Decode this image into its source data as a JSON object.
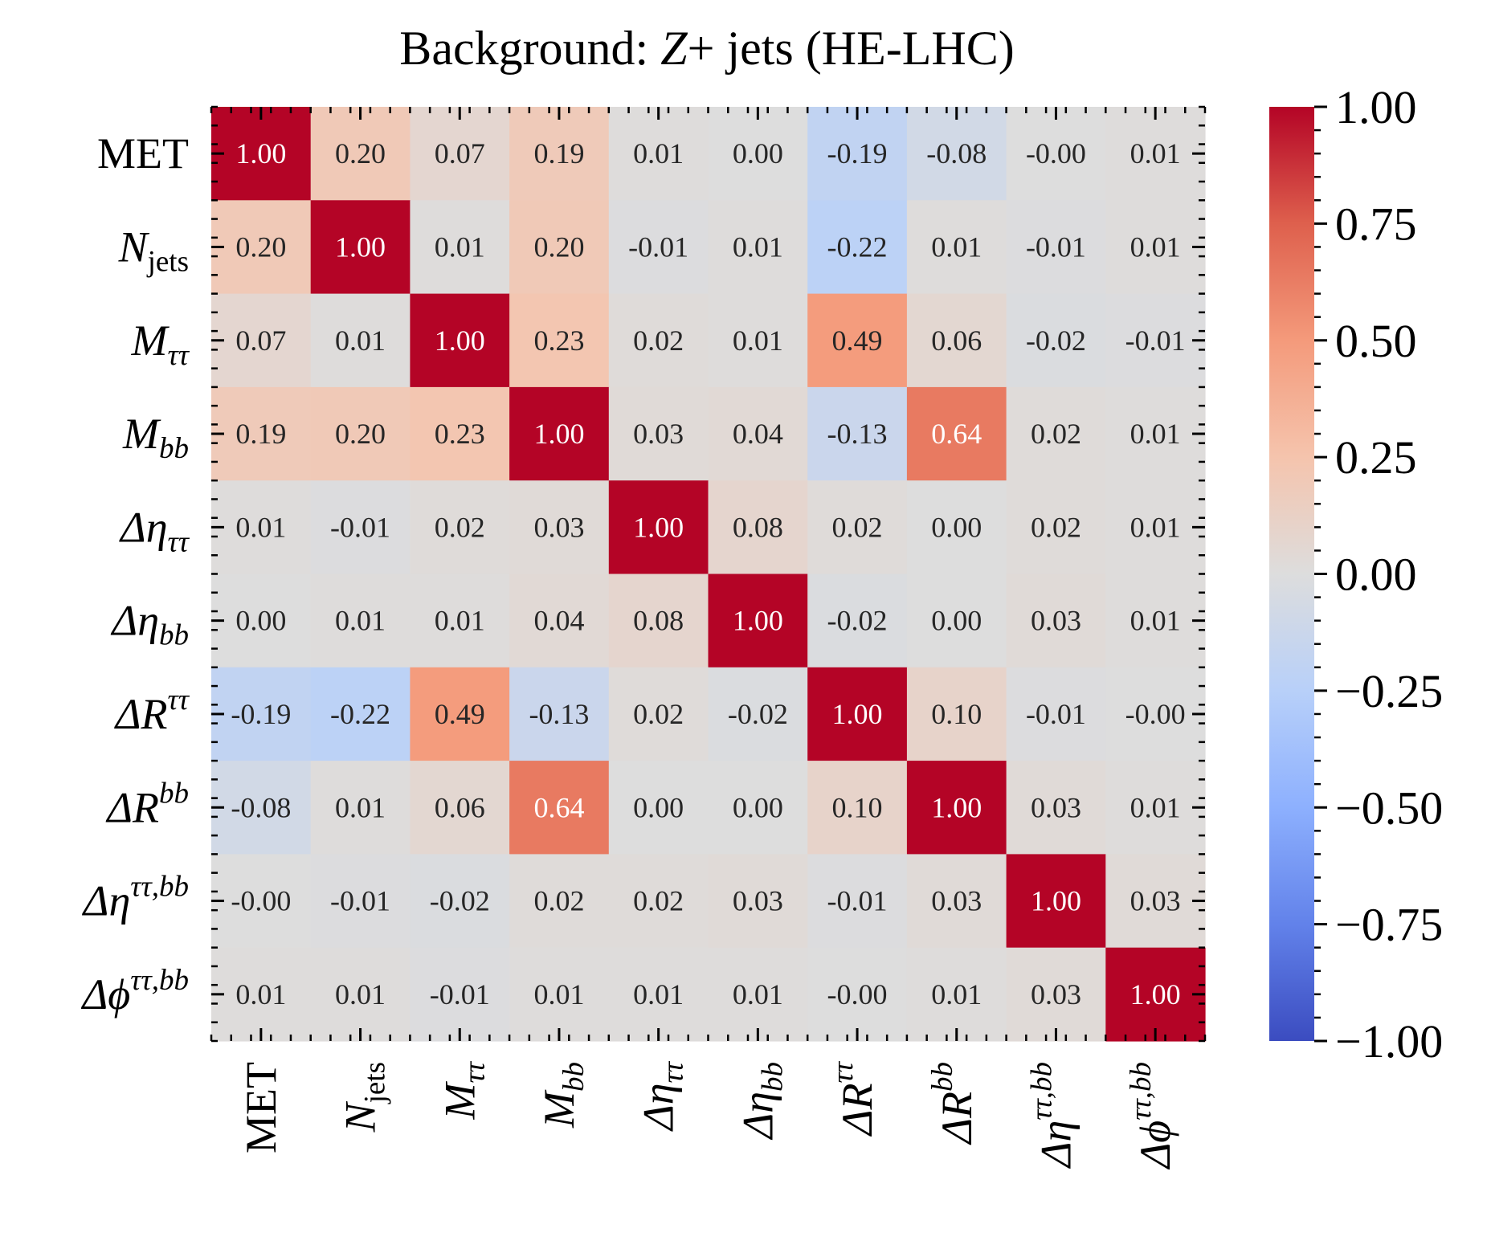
{
  "chart_data": {
    "type": "heatmap",
    "title": {
      "prefix": "Background: ",
      "italic": "Z",
      "suffix": "+ jets (HE-LHC)"
    },
    "labels": [
      {
        "base": "MET",
        "italic": false,
        "sub": "",
        "sup": ""
      },
      {
        "base": "N",
        "italic": true,
        "sub": "jets",
        "sup": ""
      },
      {
        "base": "M",
        "italic": true,
        "sub": "ττ",
        "sup": ""
      },
      {
        "base": "M",
        "italic": true,
        "sub": "bb",
        "sup": ""
      },
      {
        "base": "Δη",
        "italic": true,
        "sub": "ττ",
        "sup": ""
      },
      {
        "base": "Δη",
        "italic": true,
        "sub": "bb",
        "sup": ""
      },
      {
        "base": "ΔR",
        "italic": true,
        "sub": "",
        "sup": "ττ"
      },
      {
        "base": "ΔR",
        "italic": true,
        "sub": "",
        "sup": "bb"
      },
      {
        "base": "Δη",
        "italic": true,
        "sub": "",
        "sup": "ττ,bb"
      },
      {
        "base": "Δϕ",
        "italic": true,
        "sub": "",
        "sup": "ττ,bb"
      }
    ],
    "matrix": [
      [
        "1.00",
        "0.20",
        "0.07",
        "0.19",
        "0.01",
        "0.00",
        "-0.19",
        "-0.08",
        "-0.00",
        "0.01"
      ],
      [
        "0.20",
        "1.00",
        "0.01",
        "0.20",
        "-0.01",
        "0.01",
        "-0.22",
        "0.01",
        "-0.01",
        "0.01"
      ],
      [
        "0.07",
        "0.01",
        "1.00",
        "0.23",
        "0.02",
        "0.01",
        "0.49",
        "0.06",
        "-0.02",
        "-0.01"
      ],
      [
        "0.19",
        "0.20",
        "0.23",
        "1.00",
        "0.03",
        "0.04",
        "-0.13",
        "0.64",
        "0.02",
        "0.01"
      ],
      [
        "0.01",
        "-0.01",
        "0.02",
        "0.03",
        "1.00",
        "0.08",
        "0.02",
        "0.00",
        "0.02",
        "0.01"
      ],
      [
        "0.00",
        "0.01",
        "0.01",
        "0.04",
        "0.08",
        "1.00",
        "-0.02",
        "0.00",
        "0.03",
        "0.01"
      ],
      [
        "-0.19",
        "-0.22",
        "0.49",
        "-0.13",
        "0.02",
        "-0.02",
        "1.00",
        "0.10",
        "-0.01",
        "-0.00"
      ],
      [
        "-0.08",
        "0.01",
        "0.06",
        "0.64",
        "0.00",
        "0.00",
        "0.10",
        "1.00",
        "0.03",
        "0.01"
      ],
      [
        "-0.00",
        "-0.01",
        "-0.02",
        "0.02",
        "0.02",
        "0.03",
        "-0.01",
        "0.03",
        "1.00",
        "0.03"
      ],
      [
        "0.01",
        "0.01",
        "-0.01",
        "0.01",
        "0.01",
        "0.01",
        "-0.00",
        "0.01",
        "0.03",
        "1.00"
      ]
    ],
    "colormap": "coolwarm",
    "vmin": -1.0,
    "vmax": 1.0,
    "colorbar": {
      "ticks": [
        1.0,
        0.75,
        0.5,
        0.25,
        0.0,
        -0.25,
        -0.5,
        -0.75,
        -1.0
      ],
      "tick_labels": [
        "1.00",
        "0.75",
        "0.50",
        "0.25",
        "0.00",
        "−0.25",
        "−0.50",
        "−0.75",
        "−1.00"
      ]
    }
  }
}
